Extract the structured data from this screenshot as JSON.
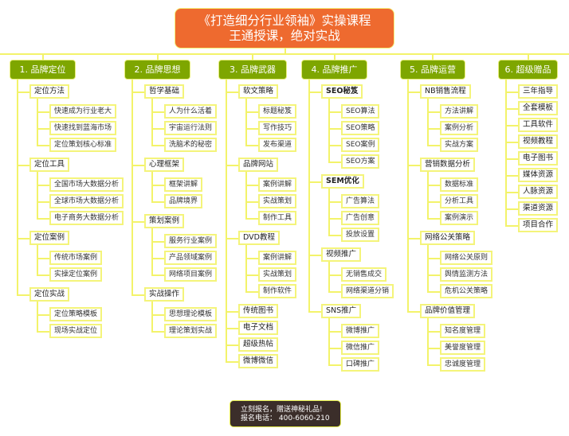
{
  "title": {
    "line1": "《打造细分行业领袖》实操课程",
    "line2": "王通授课，绝对实战"
  },
  "colors": {
    "title_bg": "#ee6a2f",
    "branch_bg": "#7ea600",
    "line": "#f3f36a",
    "footer_bg": "#3b2e2a"
  },
  "branches": [
    {
      "label": "1. 品牌定位",
      "items": [
        {
          "label": "定位方法",
          "children": [
            "快速成为行业老大",
            "快速找到蓝海市场",
            "定位策划核心标准"
          ]
        },
        {
          "label": "定位工具",
          "children": [
            "全国市场大数据分析",
            "全球市场大数据分析",
            "电子商务大数据分析"
          ]
        },
        {
          "label": "定位案例",
          "children": [
            "传统市场案例",
            "实操定位案例"
          ]
        },
        {
          "label": "定位实战",
          "children": [
            "定位策略模板",
            "现场实战定位"
          ]
        }
      ]
    },
    {
      "label": "2. 品牌思想",
      "items": [
        {
          "label": "哲学基础",
          "children": [
            "人为什么活着",
            "宇宙运行法则",
            "洗脑术的秘密"
          ]
        },
        {
          "label": "心理框架",
          "children": [
            "框架讲解",
            "品牌境界"
          ]
        },
        {
          "label": "策划案例",
          "children": [
            "服务行业案例",
            "产品领域案例",
            "网络项目案例"
          ]
        },
        {
          "label": "实战操作",
          "children": [
            "思想理论模板",
            "理论策划实战"
          ]
        }
      ]
    },
    {
      "label": "3. 品牌武器",
      "items": [
        {
          "label": "软文策略",
          "children": [
            "标题秘笈",
            "写作技巧",
            "发布渠道"
          ]
        },
        {
          "label": "品牌网站",
          "children": [
            "案例讲解",
            "实战策划",
            "制作工具"
          ]
        },
        {
          "label": "DVD教程",
          "children": [
            "案例讲解",
            "实战策划",
            "制作软件"
          ]
        },
        {
          "label": "传统图书",
          "children": []
        },
        {
          "label": "电子文档",
          "children": []
        },
        {
          "label": "超级热帖",
          "children": []
        },
        {
          "label": "微博微信",
          "children": []
        }
      ]
    },
    {
      "label": "4. 品牌推广",
      "items": [
        {
          "label": "SEO秘笈",
          "bold": true,
          "children": [
            "SEO算法",
            "SEO策略",
            "SEO案例",
            "SEO方案"
          ]
        },
        {
          "label": "SEM优化",
          "bold": true,
          "children": [
            "广告算法",
            "广告创意",
            "投放设置"
          ]
        },
        {
          "label": "视频推广",
          "children": [
            "无销售成交",
            "网络渠道分销"
          ]
        },
        {
          "label": "SNS推广",
          "children": [
            "微博推广",
            "微信推广",
            "口碑推广"
          ]
        }
      ]
    },
    {
      "label": "5. 品牌运营",
      "items": [
        {
          "label": "NB销售流程",
          "children": [
            "方法讲解",
            "案例分析",
            "实战方案"
          ]
        },
        {
          "label": "营销数据分析",
          "children": [
            "数据标准",
            "分析工具",
            "案例演示"
          ]
        },
        {
          "label": "网络公关策略",
          "children": [
            "网络公关原则",
            "舆情监测方法",
            "危机公关策略"
          ]
        },
        {
          "label": "品牌价值管理",
          "children": [
            "知名度管理",
            "美誉度管理",
            "忠诚度管理"
          ]
        }
      ]
    },
    {
      "label": "6. 超级赠品",
      "items": [
        {
          "label": "三年指导",
          "children": []
        },
        {
          "label": "全套模板",
          "children": []
        },
        {
          "label": "工具软件",
          "children": []
        },
        {
          "label": "视频教程",
          "children": []
        },
        {
          "label": "电子图书",
          "children": []
        },
        {
          "label": "媒体资源",
          "children": []
        },
        {
          "label": "人脉资源",
          "children": []
        },
        {
          "label": "渠道资源",
          "children": []
        },
        {
          "label": "项目合作",
          "children": []
        }
      ]
    }
  ],
  "footer": {
    "line1": "立刻报名，赠送神秘礼品!",
    "line2": "报名电话：  400-6060-210"
  }
}
